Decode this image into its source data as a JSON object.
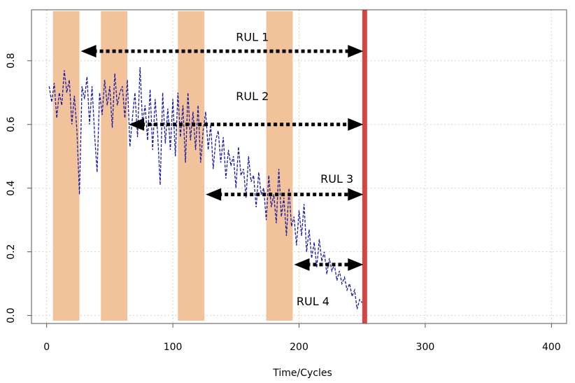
{
  "chart_data": {
    "type": "line",
    "title": "",
    "xlabel": "Time/Cycles",
    "ylabel": "",
    "xlim": [
      -12,
      412
    ],
    "ylim": [
      -0.025,
      0.96
    ],
    "x_ticks": [
      0,
      100,
      200,
      300,
      400
    ],
    "y_ticks": [
      0.0,
      0.2,
      0.4,
      0.6,
      0.8
    ],
    "x_tick_labels": [
      "0",
      "100",
      "200",
      "300",
      "400"
    ],
    "y_tick_labels": [
      "0.0",
      "0.2",
      "0.4",
      "0.6",
      "0.8"
    ],
    "grid": true,
    "series": [
      {
        "style": "dashed",
        "color": "#1a1aa6",
        "x": [
          2,
          4,
          6,
          8,
          10,
          12,
          14,
          16,
          18,
          20,
          22,
          24,
          26,
          28,
          30,
          32,
          34,
          36,
          38,
          40,
          42,
          44,
          46,
          48,
          50,
          52,
          54,
          56,
          58,
          60,
          62,
          64,
          66,
          68,
          70,
          72,
          74,
          76,
          78,
          80,
          82,
          84,
          86,
          88,
          90,
          92,
          94,
          96,
          98,
          100,
          102,
          104,
          106,
          108,
          110,
          112,
          114,
          116,
          118,
          120,
          122,
          124,
          126,
          128,
          130,
          132,
          134,
          136,
          138,
          140,
          142,
          144,
          146,
          148,
          150,
          152,
          154,
          156,
          158,
          160,
          162,
          164,
          166,
          168,
          170,
          172,
          174,
          176,
          178,
          180,
          182,
          184,
          186,
          188,
          190,
          192,
          194,
          196,
          198,
          200,
          202,
          204,
          206,
          208,
          210,
          212,
          214,
          216,
          218,
          220,
          222,
          224,
          226,
          228,
          230,
          232,
          234,
          236,
          238,
          240,
          242,
          244,
          246,
          248,
          250
        ],
        "y": [
          0.72,
          0.67,
          0.73,
          0.62,
          0.7,
          0.66,
          0.77,
          0.7,
          0.74,
          0.6,
          0.69,
          0.58,
          0.38,
          0.72,
          0.68,
          0.75,
          0.6,
          0.72,
          0.57,
          0.45,
          0.7,
          0.63,
          0.74,
          0.66,
          0.72,
          0.59,
          0.76,
          0.66,
          0.7,
          0.72,
          0.62,
          0.74,
          0.53,
          0.62,
          0.7,
          0.56,
          0.78,
          0.6,
          0.66,
          0.55,
          0.71,
          0.52,
          0.68,
          0.57,
          0.41,
          0.7,
          0.54,
          0.65,
          0.52,
          0.68,
          0.5,
          0.7,
          0.56,
          0.66,
          0.48,
          0.7,
          0.55,
          0.64,
          0.52,
          0.66,
          0.48,
          0.58,
          0.64,
          0.52,
          0.6,
          0.46,
          0.55,
          0.58,
          0.48,
          0.56,
          0.43,
          0.52,
          0.47,
          0.5,
          0.4,
          0.53,
          0.44,
          0.46,
          0.37,
          0.5,
          0.42,
          0.44,
          0.34,
          0.45,
          0.38,
          0.4,
          0.3,
          0.44,
          0.34,
          0.38,
          0.29,
          0.46,
          0.31,
          0.37,
          0.25,
          0.4,
          0.28,
          0.31,
          0.22,
          0.33,
          0.25,
          0.35,
          0.2,
          0.27,
          0.18,
          0.23,
          0.15,
          0.24,
          0.17,
          0.2,
          0.13,
          0.18,
          0.14,
          0.16,
          0.11,
          0.14,
          0.1,
          0.12,
          0.08,
          0.1,
          0.06,
          0.08,
          0.02,
          0.05,
          0.04
        ]
      }
    ],
    "shaded_regions": [
      {
        "x0": 5,
        "x1": 26,
        "color": "#f2c39a"
      },
      {
        "x0": 43,
        "x1": 64,
        "color": "#f2c39a"
      },
      {
        "x0": 104,
        "x1": 125,
        "color": "#f2c39a"
      },
      {
        "x0": 174,
        "x1": 195,
        "color": "#f2c39a"
      }
    ],
    "end_of_life": {
      "x": 252,
      "color": "#d14747"
    },
    "annotations": [
      {
        "label": "RUL 1",
        "from_x": 26,
        "to_x": 252,
        "y": 0.83,
        "text_x": 150,
        "text_y": 0.875
      },
      {
        "label": "RUL 2",
        "from_x": 64,
        "to_x": 252,
        "y": 0.6,
        "text_x": 150,
        "text_y": 0.69
      },
      {
        "label": "RUL 3",
        "from_x": 125,
        "to_x": 252,
        "y": 0.38,
        "text_x": 217,
        "text_y": 0.43
      },
      {
        "label": "RUL 4",
        "from_x": 195,
        "to_x": 252,
        "y": 0.16,
        "text_x": 198,
        "text_y": 0.045
      }
    ]
  }
}
